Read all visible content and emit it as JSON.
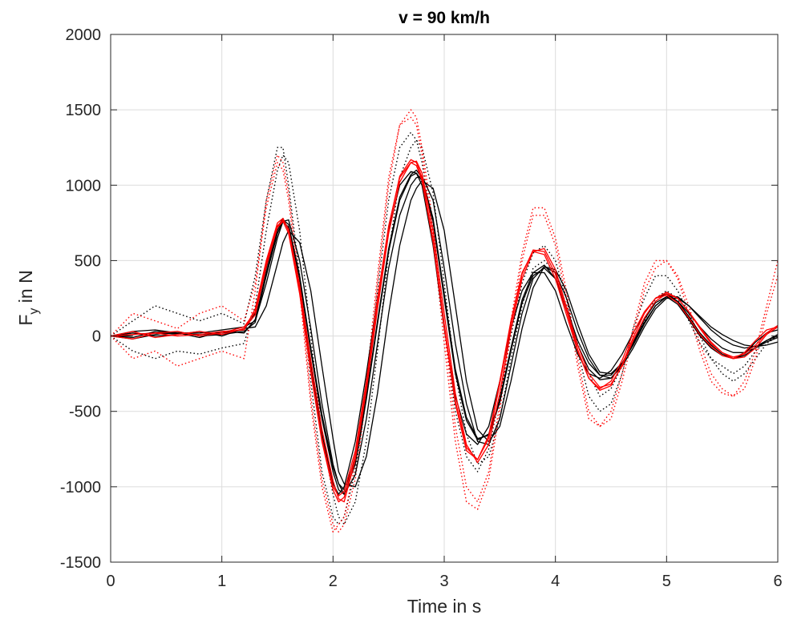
{
  "chart_data": {
    "type": "line",
    "title": "v = 90 km/h",
    "xlabel": "Time in s",
    "ylabel_main": "F",
    "ylabel_sub": "y",
    "ylabel_rest": " in N",
    "xlim": [
      0,
      6
    ],
    "ylim": [
      -1500,
      2000
    ],
    "xticks": [
      0,
      1,
      2,
      3,
      4,
      5,
      6
    ],
    "yticks": [
      -1500,
      -1000,
      -500,
      0,
      500,
      1000,
      1500,
      2000
    ],
    "xtick_labels": [
      "0",
      "1",
      "2",
      "3",
      "4",
      "5",
      "6"
    ],
    "ytick_labels": [
      "-1500",
      "-1000",
      "-500",
      "0",
      "500",
      "1000",
      "1500",
      "2000"
    ],
    "grid": true,
    "colors": {
      "black_series": "#000000",
      "red_series": "#ff0000",
      "grid": "#dcdcdc",
      "axis": "#262626"
    },
    "x": [
      0.0,
      0.2,
      0.4,
      0.6,
      0.8,
      1.0,
      1.2,
      1.3,
      1.4,
      1.5,
      1.55,
      1.6,
      1.7,
      1.8,
      1.9,
      2.0,
      2.05,
      2.1,
      2.2,
      2.3,
      2.4,
      2.5,
      2.6,
      2.7,
      2.75,
      2.8,
      2.9,
      3.0,
      3.1,
      3.2,
      3.3,
      3.4,
      3.5,
      3.6,
      3.7,
      3.8,
      3.9,
      4.0,
      4.1,
      4.2,
      4.3,
      4.4,
      4.5,
      4.6,
      4.7,
      4.8,
      4.9,
      5.0,
      5.1,
      5.2,
      5.3,
      5.4,
      5.5,
      5.6,
      5.7,
      5.8,
      5.9,
      6.0
    ],
    "series": [
      {
        "color": "black",
        "style": "solid",
        "values": [
          0,
          10,
          20,
          15,
          10,
          20,
          40,
          150,
          450,
          720,
          780,
          700,
          300,
          -200,
          -650,
          -980,
          -1050,
          -1000,
          -700,
          -250,
          250,
          700,
          1000,
          1090,
          1080,
          1000,
          600,
          50,
          -400,
          -650,
          -720,
          -600,
          -300,
          50,
          300,
          420,
          420,
          300,
          80,
          -120,
          -250,
          -280,
          -230,
          -120,
          20,
          150,
          250,
          280,
          230,
          130,
          20,
          -60,
          -120,
          -150,
          -120,
          -40,
          20,
          40
        ]
      },
      {
        "color": "black",
        "style": "solid",
        "values": [
          0,
          30,
          40,
          20,
          20,
          40,
          60,
          100,
          350,
          650,
          760,
          770,
          500,
          50,
          -450,
          -850,
          -980,
          -1050,
          -920,
          -550,
          -50,
          450,
          800,
          1000,
          1050,
          1060,
          900,
          450,
          -50,
          -450,
          -700,
          -720,
          -550,
          -200,
          150,
          380,
          460,
          420,
          250,
          30,
          -150,
          -260,
          -280,
          -200,
          -80,
          60,
          180,
          250,
          250,
          200,
          120,
          40,
          -20,
          -60,
          -80,
          -70,
          -30,
          10
        ]
      },
      {
        "color": "black",
        "style": "solid",
        "values": [
          0,
          -20,
          10,
          30,
          0,
          10,
          30,
          90,
          400,
          680,
          760,
          720,
          380,
          -100,
          -550,
          -900,
          -1020,
          -1050,
          -850,
          -420,
          80,
          560,
          900,
          1060,
          1080,
          1030,
          760,
          250,
          -250,
          -560,
          -690,
          -650,
          -420,
          -80,
          240,
          420,
          470,
          380,
          170,
          -60,
          -220,
          -290,
          -280,
          -190,
          -40,
          110,
          220,
          260,
          210,
          110,
          0,
          -80,
          -130,
          -150,
          -130,
          -80,
          -30,
          0
        ]
      },
      {
        "color": "black",
        "style": "solid",
        "values": [
          0,
          20,
          0,
          10,
          30,
          0,
          50,
          60,
          200,
          480,
          620,
          700,
          620,
          300,
          -200,
          -680,
          -900,
          -980,
          -1000,
          -800,
          -380,
          150,
          600,
          900,
          980,
          1030,
          980,
          700,
          200,
          -300,
          -620,
          -700,
          -600,
          -300,
          50,
          320,
          460,
          440,
          300,
          80,
          -120,
          -240,
          -250,
          -180,
          -60,
          80,
          200,
          260,
          260,
          200,
          130,
          60,
          10,
          -30,
          -60,
          -70,
          -60,
          -40
        ]
      },
      {
        "color": "black",
        "style": "solid",
        "values": [
          0,
          -10,
          30,
          20,
          -10,
          30,
          20,
          110,
          420,
          700,
          770,
          740,
          400,
          -80,
          -520,
          -870,
          -980,
          -1020,
          -820,
          -400,
          100,
          580,
          920,
          1070,
          1100,
          1050,
          780,
          280,
          -220,
          -540,
          -680,
          -660,
          -440,
          -100,
          220,
          400,
          450,
          380,
          190,
          -30,
          -180,
          -260,
          -260,
          -180,
          -50,
          90,
          200,
          260,
          230,
          150,
          60,
          -20,
          -80,
          -110,
          -110,
          -80,
          -40,
          -10
        ]
      },
      {
        "color": "red",
        "style": "solid",
        "values": [
          0,
          10,
          20,
          0,
          10,
          30,
          40,
          180,
          500,
          750,
          780,
          700,
          300,
          -220,
          -680,
          -1000,
          -1060,
          -1030,
          -760,
          -300,
          250,
          730,
          1050,
          1150,
          1130,
          1030,
          620,
          60,
          -450,
          -760,
          -820,
          -660,
          -300,
          100,
          420,
          560,
          540,
          380,
          140,
          -100,
          -280,
          -350,
          -300,
          -160,
          20,
          160,
          250,
          270,
          220,
          120,
          10,
          -70,
          -130,
          -150,
          -110,
          -30,
          40,
          60
        ]
      },
      {
        "color": "red",
        "style": "solid",
        "values": [
          0,
          -20,
          20,
          30,
          0,
          20,
          60,
          160,
          480,
          730,
          770,
          710,
          340,
          -160,
          -620,
          -960,
          -1080,
          -1100,
          -820,
          -360,
          180,
          680,
          1020,
          1150,
          1160,
          1080,
          700,
          150,
          -380,
          -720,
          -840,
          -720,
          -380,
          40,
          380,
          560,
          580,
          440,
          190,
          -60,
          -250,
          -340,
          -320,
          -200,
          -30,
          120,
          230,
          280,
          250,
          160,
          50,
          -50,
          -110,
          -140,
          -120,
          -60,
          20,
          70
        ]
      },
      {
        "color": "red",
        "style": "solid",
        "values": [
          0,
          30,
          -10,
          10,
          30,
          10,
          50,
          140,
          460,
          720,
          760,
          680,
          280,
          -240,
          -700,
          -1020,
          -1100,
          -1070,
          -790,
          -320,
          220,
          720,
          1060,
          1170,
          1150,
          1050,
          640,
          80,
          -430,
          -740,
          -820,
          -680,
          -320,
          80,
          410,
          570,
          560,
          410,
          170,
          -90,
          -280,
          -360,
          -330,
          -190,
          -10,
          150,
          250,
          290,
          250,
          160,
          60,
          -40,
          -110,
          -150,
          -140,
          -80,
          10,
          60
        ]
      },
      {
        "color": "black",
        "style": "dotted",
        "values": [
          0,
          100,
          200,
          150,
          100,
          150,
          80,
          400,
          900,
          1250,
          1250,
          1000,
          400,
          -300,
          -900,
          -1200,
          -1250,
          -1200,
          -900,
          -400,
          300,
          900,
          1250,
          1350,
          1300,
          1150,
          700,
          50,
          -500,
          -800,
          -900,
          -750,
          -400,
          0,
          350,
          550,
          600,
          500,
          250,
          -100,
          -400,
          -500,
          -450,
          -250,
          50,
          250,
          400,
          400,
          300,
          150,
          0,
          -150,
          -250,
          -300,
          -250,
          -150,
          -50,
          0
        ]
      },
      {
        "color": "black",
        "style": "dotted",
        "values": [
          0,
          -100,
          -150,
          -100,
          -120,
          -80,
          -50,
          200,
          700,
          1100,
          1200,
          1150,
          700,
          0,
          -650,
          -1050,
          -1200,
          -1250,
          -1100,
          -700,
          -100,
          550,
          1050,
          1250,
          1300,
          1250,
          950,
          350,
          -250,
          -650,
          -850,
          -800,
          -550,
          -150,
          200,
          450,
          500,
          420,
          200,
          -50,
          -250,
          -400,
          -350,
          -200,
          -50,
          100,
          250,
          300,
          250,
          100,
          -50,
          -150,
          -200,
          -250,
          -200,
          -100,
          -30,
          -10
        ]
      },
      {
        "color": "red",
        "style": "dotted",
        "values": [
          0,
          -150,
          -100,
          -200,
          -150,
          -100,
          -150,
          300,
          900,
          1200,
          1150,
          950,
          350,
          -400,
          -950,
          -1250,
          -1300,
          -1250,
          -950,
          -400,
          350,
          1000,
          1400,
          1500,
          1450,
          1250,
          750,
          50,
          -600,
          -1000,
          -1100,
          -900,
          -450,
          100,
          550,
          850,
          850,
          650,
          300,
          -150,
          -500,
          -600,
          -550,
          -300,
          0,
          300,
          450,
          500,
          400,
          200,
          -50,
          -250,
          -350,
          -400,
          -350,
          -150,
          150,
          400
        ]
      },
      {
        "color": "red",
        "style": "dotted",
        "values": [
          0,
          150,
          100,
          50,
          150,
          200,
          100,
          350,
          850,
          1150,
          1100,
          900,
          300,
          -450,
          -1000,
          -1300,
          -1250,
          -1200,
          -850,
          -300,
          400,
          1050,
          1400,
          1450,
          1400,
          1200,
          650,
          -50,
          -700,
          -1100,
          -1150,
          -950,
          -500,
          50,
          500,
          800,
          800,
          600,
          250,
          -200,
          -550,
          -600,
          -500,
          -250,
          50,
          350,
          500,
          500,
          380,
          150,
          -100,
          -300,
          -380,
          -400,
          -300,
          -100,
          200,
          500
        ]
      }
    ]
  }
}
